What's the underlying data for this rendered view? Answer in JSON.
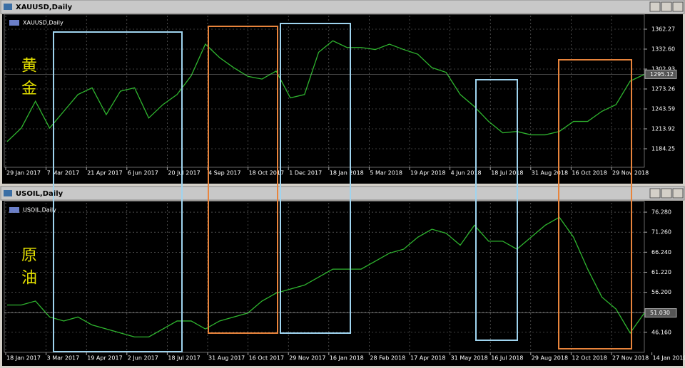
{
  "chart_data": [
    {
      "type": "line",
      "title": "XAUUSD,Daily",
      "subtitle": "XAUUSD,Daily",
      "annotation": "黄金",
      "color": "#2fb52f",
      "grid": true,
      "values": [
        1195,
        1215,
        1255,
        1215,
        1240,
        1265,
        1275,
        1235,
        1270,
        1275,
        1230,
        1250,
        1265,
        1293,
        1340,
        1320,
        1305,
        1292,
        1288,
        1300,
        1260,
        1265,
        1328,
        1345,
        1335,
        1335,
        1332,
        1340,
        1332,
        1325,
        1305,
        1298,
        1265,
        1247,
        1225,
        1208,
        1210,
        1205,
        1205,
        1210,
        1225,
        1225,
        1240,
        1250,
        1285,
        1295
      ],
      "ylim": [
        1156.7,
        1382.4
      ],
      "yticks": [
        1362.27,
        {
          "value": 1332.6,
          "label": "1332.60"
        },
        1302.93,
        1273.26,
        1243.59,
        1213.92,
        1184.25
      ],
      "last_price": 1295.12,
      "x_labels": [
        "29 Jan 2017",
        "7 Mar 2017",
        "21 Apr 2017",
        "6 Jun 2017",
        "20 Jul 2017",
        "4 Sep 2017",
        "18 Oct 2017",
        "1 Dec 2017",
        "18 Jan 2018",
        "5 Mar 2018",
        "19 Apr 2018",
        "4 Jun 2018",
        "18 Jul 2018",
        "31 Aug 2018",
        "16 Oct 2018",
        "29 Nov 2018"
      ]
    },
    {
      "type": "line",
      "title": "USOIL,Daily",
      "subtitle": "USOIL,Daily",
      "annotation": "原油",
      "color": "#2fb52f",
      "grid": true,
      "values": [
        53,
        53,
        54,
        50,
        49,
        50,
        48,
        47,
        46,
        45,
        45,
        47,
        49,
        49,
        47,
        49,
        50,
        51,
        54,
        56,
        57,
        58,
        60,
        62,
        62,
        62,
        64,
        66,
        67,
        70,
        72,
        71,
        68,
        73,
        69,
        69,
        67,
        70,
        73,
        75,
        70,
        62,
        55,
        52,
        46,
        51
      ],
      "ylim": [
        41.14,
        78.61
      ],
      "yticks": [
        {
          "value": 76.28,
          "label": "76.280"
        },
        {
          "value": 71.26,
          "label": "71.260"
        },
        {
          "value": 66.24,
          "label": "66.240"
        },
        {
          "value": 61.22,
          "label": "61.220"
        },
        {
          "value": 56.2,
          "label": "56.200"
        },
        {
          "value": 51.18,
          "label": "51.180"
        },
        {
          "value": 46.16,
          "label": "46.160"
        }
      ],
      "last_price": {
        "value": 51.03,
        "label": "51.030"
      },
      "x_labels": [
        "18 Jan 2017",
        "3 Mar 2017",
        "19 Apr 2017",
        "2 Jun 2017",
        "18 Jul 2017",
        "31 Aug 2017",
        "16 Oct 2017",
        "29 Nov 2017",
        "16 Jan 2018",
        "28 Feb 2018",
        "17 Apr 2018",
        "31 May 2018",
        "16 Jul 2018",
        "29 Aug 2018",
        "12 Oct 2018",
        "27 Nov 2018",
        "14 Jan 2019"
      ]
    }
  ]
}
